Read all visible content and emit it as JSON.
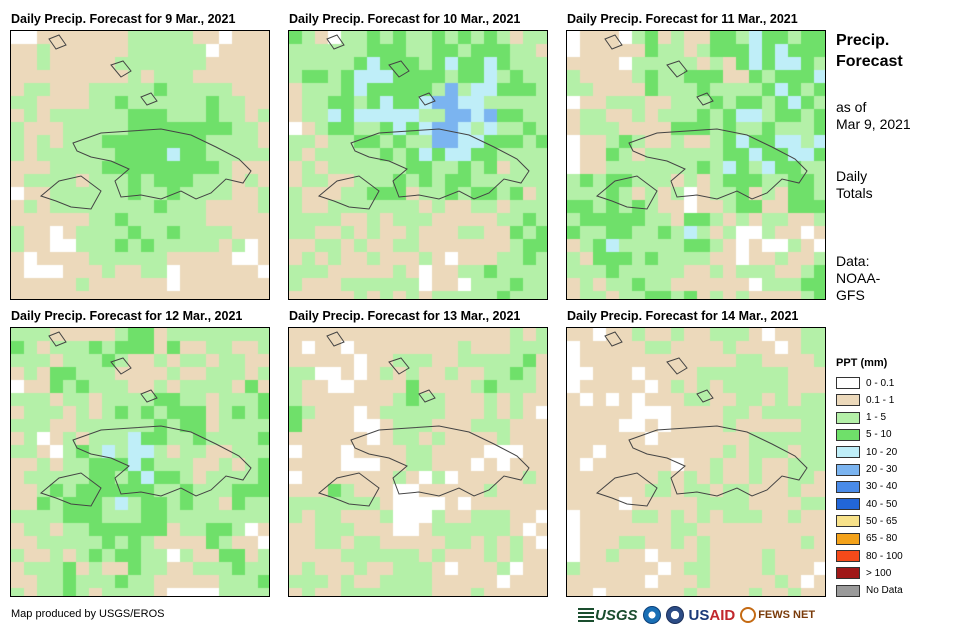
{
  "panels": [
    {
      "title": "Daily Precip. Forecast for 9 Mar., 2021",
      "day": 9
    },
    {
      "title": "Daily Precip. Forecast for 10 Mar., 2021",
      "day": 10
    },
    {
      "title": "Daily Precip. Forecast for 11 Mar., 2021",
      "day": 11
    },
    {
      "title": "Daily Precip. Forecast for 12 Mar., 2021",
      "day": 12
    },
    {
      "title": "Daily Precip. Forecast for 13 Mar., 2021",
      "day": 13
    },
    {
      "title": "Daily Precip. Forecast for 14 Mar., 2021",
      "day": 14
    }
  ],
  "side": {
    "title_line1": "Precip.",
    "title_line2": "Forecast",
    "asof_line1": "as of",
    "asof_line2": "Mar 9, 2021",
    "totals_line1": "Daily",
    "totals_line2": "Totals",
    "data_line1": "Data:",
    "data_line2": "NOAA-",
    "data_line3": "GFS"
  },
  "legend": {
    "title": "PPT (mm)",
    "items": [
      {
        "label": "0 - 0.1",
        "color": "#ffffff"
      },
      {
        "label": "0.1 - 1",
        "color": "#ecd9bb"
      },
      {
        "label": "1 - 5",
        "color": "#b4f0a8"
      },
      {
        "label": "5 - 10",
        "color": "#6fe06a"
      },
      {
        "label": "10 - 20",
        "color": "#bfeef8"
      },
      {
        "label": "20 - 30",
        "color": "#7bb4f0"
      },
      {
        "label": "30 - 40",
        "color": "#4a8be8"
      },
      {
        "label": "40 - 50",
        "color": "#2266d8"
      },
      {
        "label": "50 - 65",
        "color": "#f8e28a"
      },
      {
        "label": "65 - 80",
        "color": "#f4a21a"
      },
      {
        "label": "80 - 100",
        "color": "#f44a1a"
      },
      {
        "label": "> 100",
        "color": "#a01818"
      },
      {
        "label": "No Data",
        "color": "#9a9a9a"
      }
    ]
  },
  "credit": "Map produced by USGS/EROS",
  "logos": {
    "usgs": "USGS",
    "usaid_a": "US",
    "usaid_b": "AID",
    "fews": "FEWS NET"
  }
}
